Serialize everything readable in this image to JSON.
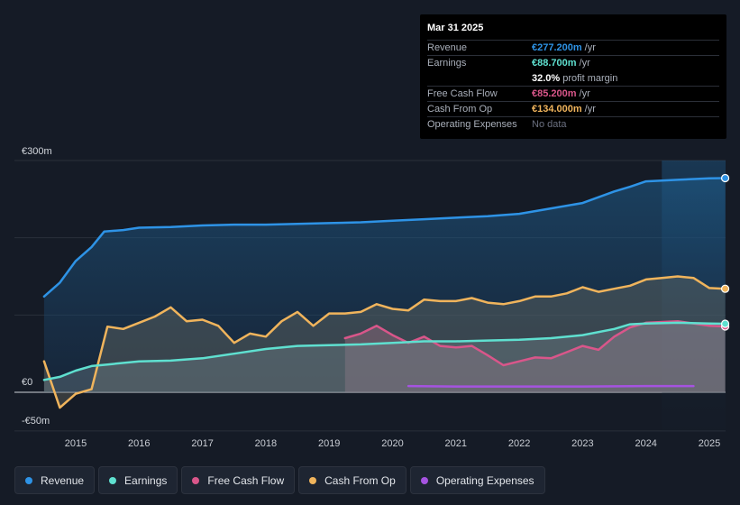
{
  "tooltip": {
    "date": "Mar 31 2025",
    "rows": [
      {
        "label": "Revenue",
        "value": "€277.200m",
        "unit": "/yr",
        "color": "#2e93e6"
      },
      {
        "label": "Earnings",
        "value": "€88.700m",
        "unit": "/yr",
        "color": "#5fe0d0"
      },
      {
        "label": "",
        "value": "32.0%",
        "unit": "profit margin",
        "color": "#ffffff"
      },
      {
        "label": "Free Cash Flow",
        "value": "€85.200m",
        "unit": "/yr",
        "color": "#d9568a"
      },
      {
        "label": "Cash From Op",
        "value": "€134.000m",
        "unit": "/yr",
        "color": "#f0b45c"
      },
      {
        "label": "Operating Expenses",
        "value": "No data",
        "unit": "",
        "color": "#6b7080"
      }
    ]
  },
  "legend": [
    {
      "label": "Revenue",
      "color": "#2e93e6"
    },
    {
      "label": "Earnings",
      "color": "#5fe0d0"
    },
    {
      "label": "Free Cash Flow",
      "color": "#d9568a"
    },
    {
      "label": "Cash From Op",
      "color": "#f0b45c"
    },
    {
      "label": "Operating Expenses",
      "color": "#a553e0"
    }
  ],
  "chart_data": {
    "type": "line",
    "title": "",
    "xlabel": "",
    "ylabel": "",
    "unit": "€m",
    "ylim": [
      -50,
      300
    ],
    "y_tick_labels": [
      {
        "value": 300,
        "label": "€300m"
      },
      {
        "value": 0,
        "label": "€0"
      },
      {
        "value": -50,
        "label": "-€50m"
      }
    ],
    "gridlines": [
      300,
      200,
      100,
      0,
      -50
    ],
    "xlim": [
      2014.5,
      2025.25
    ],
    "x_ticks": [
      "2015",
      "2016",
      "2017",
      "2018",
      "2019",
      "2020",
      "2021",
      "2022",
      "2023",
      "2024",
      "2025"
    ],
    "highlight_from": 2024.25,
    "series": [
      {
        "name": "Revenue",
        "color": "#2e93e6",
        "points": [
          [
            2014.5,
            124
          ],
          [
            2014.75,
            142
          ],
          [
            2015.0,
            170
          ],
          [
            2015.25,
            188
          ],
          [
            2015.45,
            208
          ],
          [
            2015.75,
            210
          ],
          [
            2016.0,
            213
          ],
          [
            2016.5,
            214
          ],
          [
            2017.0,
            216
          ],
          [
            2017.5,
            217
          ],
          [
            2018.0,
            217
          ],
          [
            2018.5,
            218
          ],
          [
            2019.0,
            219
          ],
          [
            2019.5,
            220
          ],
          [
            2020.0,
            222
          ],
          [
            2020.5,
            224
          ],
          [
            2021.0,
            226
          ],
          [
            2021.5,
            228
          ],
          [
            2022.0,
            231
          ],
          [
            2022.5,
            238
          ],
          [
            2023.0,
            245
          ],
          [
            2023.5,
            260
          ],
          [
            2023.75,
            266
          ],
          [
            2024.0,
            273
          ],
          [
            2024.5,
            275
          ],
          [
            2025.0,
            277
          ],
          [
            2025.25,
            277.2
          ]
        ]
      },
      {
        "name": "Earnings",
        "color": "#5fe0d0",
        "points": [
          [
            2014.5,
            16
          ],
          [
            2014.75,
            20
          ],
          [
            2015.0,
            28
          ],
          [
            2015.25,
            34
          ],
          [
            2015.5,
            36
          ],
          [
            2016.0,
            40
          ],
          [
            2016.5,
            41
          ],
          [
            2017.0,
            44
          ],
          [
            2017.5,
            50
          ],
          [
            2018.0,
            56
          ],
          [
            2018.5,
            60
          ],
          [
            2019.0,
            61
          ],
          [
            2019.5,
            62
          ],
          [
            2020.0,
            64
          ],
          [
            2020.5,
            66
          ],
          [
            2021.0,
            66
          ],
          [
            2021.5,
            67
          ],
          [
            2022.0,
            68
          ],
          [
            2022.5,
            70
          ],
          [
            2023.0,
            74
          ],
          [
            2023.5,
            82
          ],
          [
            2023.75,
            88
          ],
          [
            2024.0,
            89
          ],
          [
            2024.5,
            90
          ],
          [
            2025.0,
            89
          ],
          [
            2025.25,
            88.7
          ]
        ]
      },
      {
        "name": "Free Cash Flow",
        "color": "#d9568a",
        "points": [
          [
            2019.25,
            70
          ],
          [
            2019.5,
            76
          ],
          [
            2019.75,
            86
          ],
          [
            2020.0,
            74
          ],
          [
            2020.25,
            64
          ],
          [
            2020.5,
            72
          ],
          [
            2020.75,
            60
          ],
          [
            2021.0,
            58
          ],
          [
            2021.25,
            60
          ],
          [
            2021.5,
            48
          ],
          [
            2021.75,
            35
          ],
          [
            2022.0,
            40
          ],
          [
            2022.25,
            45
          ],
          [
            2022.5,
            44
          ],
          [
            2022.75,
            52
          ],
          [
            2023.0,
            60
          ],
          [
            2023.25,
            55
          ],
          [
            2023.5,
            72
          ],
          [
            2023.75,
            84
          ],
          [
            2024.0,
            90
          ],
          [
            2024.5,
            92
          ],
          [
            2025.0,
            86
          ],
          [
            2025.25,
            85.2
          ]
        ]
      },
      {
        "name": "Cash From Op",
        "color": "#f0b45c",
        "points": [
          [
            2014.5,
            40
          ],
          [
            2014.75,
            -20
          ],
          [
            2015.0,
            -2
          ],
          [
            2015.25,
            4
          ],
          [
            2015.5,
            85
          ],
          [
            2015.75,
            82
          ],
          [
            2016.0,
            90
          ],
          [
            2016.25,
            98
          ],
          [
            2016.5,
            110
          ],
          [
            2016.75,
            92
          ],
          [
            2017.0,
            94
          ],
          [
            2017.25,
            86
          ],
          [
            2017.5,
            64
          ],
          [
            2017.75,
            76
          ],
          [
            2018.0,
            72
          ],
          [
            2018.25,
            92
          ],
          [
            2018.5,
            104
          ],
          [
            2018.75,
            86
          ],
          [
            2019.0,
            102
          ],
          [
            2019.25,
            102
          ],
          [
            2019.5,
            104
          ],
          [
            2019.75,
            114
          ],
          [
            2020.0,
            108
          ],
          [
            2020.25,
            106
          ],
          [
            2020.5,
            120
          ],
          [
            2020.75,
            118
          ],
          [
            2021.0,
            118
          ],
          [
            2021.25,
            122
          ],
          [
            2021.5,
            116
          ],
          [
            2021.75,
            114
          ],
          [
            2022.0,
            118
          ],
          [
            2022.25,
            124
          ],
          [
            2022.5,
            124
          ],
          [
            2022.75,
            128
          ],
          [
            2023.0,
            136
          ],
          [
            2023.25,
            130
          ],
          [
            2023.5,
            134
          ],
          [
            2023.75,
            138
          ],
          [
            2024.0,
            146
          ],
          [
            2024.25,
            148
          ],
          [
            2024.5,
            150
          ],
          [
            2024.75,
            148
          ],
          [
            2025.0,
            135
          ],
          [
            2025.25,
            134
          ]
        ]
      },
      {
        "name": "Operating Expenses",
        "color": "#a553e0",
        "points": [
          [
            2020.25,
            8
          ],
          [
            2021.0,
            7.5
          ],
          [
            2022.0,
            7.5
          ],
          [
            2023.0,
            7.5
          ],
          [
            2024.0,
            8
          ],
          [
            2024.75,
            8
          ]
        ]
      }
    ]
  }
}
